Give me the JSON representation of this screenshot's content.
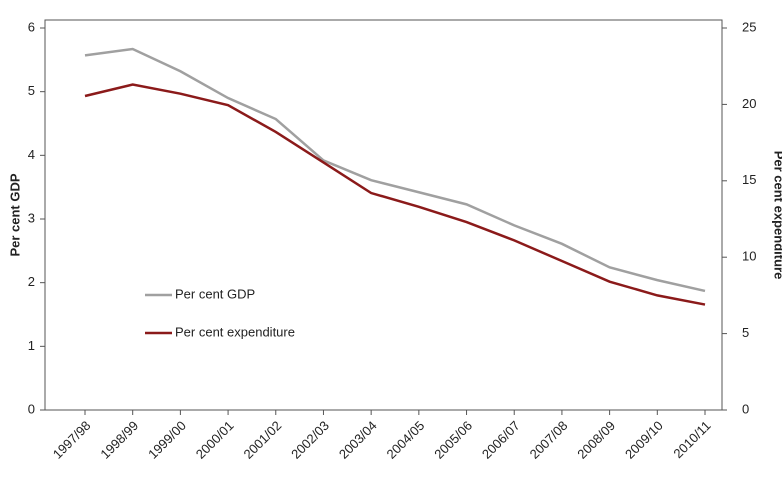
{
  "chart_data": {
    "type": "line",
    "categories": [
      "1997/98",
      "1998/99",
      "1999/00",
      "2000/01",
      "2001/02",
      "2002/03",
      "2003/04",
      "2004/05",
      "2005/06",
      "2006/07",
      "2007/08",
      "2008/09",
      "2009/10",
      "2010/11"
    ],
    "series": [
      {
        "name": "Per cent GDP",
        "color": "#a0a0a0",
        "values": [
          5.57,
          5.67,
          5.32,
          4.9,
          4.57,
          3.92,
          3.61,
          3.42,
          3.23,
          2.9,
          2.61,
          2.24,
          2.04,
          1.87
        ]
      },
      {
        "name": "Per cent expenditure",
        "color": "#8b1a1a",
        "axis": "y2",
        "values": [
          20.55,
          21.3,
          20.7,
          19.95,
          18.2,
          16.2,
          14.2,
          13.3,
          12.3,
          11.1,
          9.75,
          8.4,
          7.5,
          6.9
        ]
      }
    ],
    "ylabel": "Per cent GDP",
    "y2label": "Per cent expenditure",
    "ylim": [
      0,
      6
    ],
    "yticks": [
      0,
      1,
      2,
      3,
      4,
      5,
      6
    ],
    "y2lim": [
      0,
      25
    ],
    "y2ticks": [
      0,
      5,
      10,
      15,
      20,
      25
    ]
  }
}
